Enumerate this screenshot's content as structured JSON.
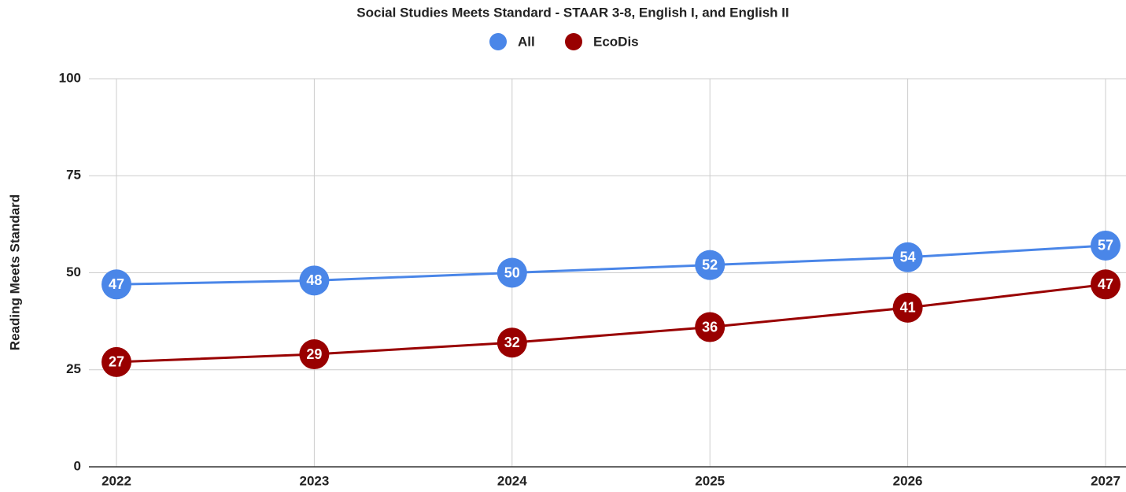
{
  "chart_data": {
    "type": "line",
    "title": "Social Studies Meets Standard - STAAR 3-8, English I, and English II",
    "y_label": "Reading Meets Standard",
    "categories": [
      "2022",
      "2023",
      "2024",
      "2025",
      "2026",
      "2027"
    ],
    "series": [
      {
        "name": "All",
        "color": "#4a86e8",
        "values": [
          47,
          48,
          50,
          52,
          54,
          57
        ]
      },
      {
        "name": "EcoDis",
        "color": "#990000",
        "values": [
          27,
          29,
          32,
          36,
          41,
          47
        ]
      }
    ],
    "ylim": [
      0,
      100
    ],
    "yticks": [
      0,
      25,
      50,
      75,
      100
    ],
    "grid": true,
    "legend": "top"
  }
}
